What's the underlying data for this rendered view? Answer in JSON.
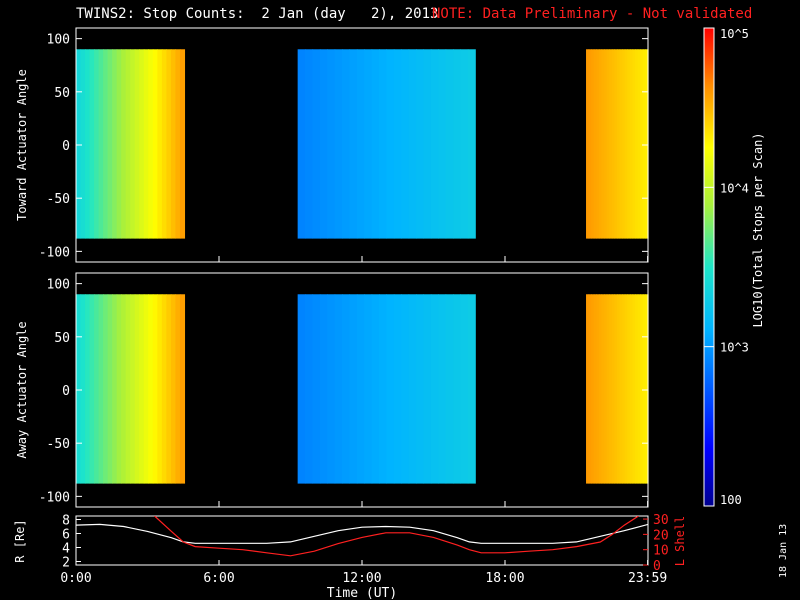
{
  "title": "TWINS2: Stop Counts:  2 Jan (day   2), 2013",
  "note": "NOTE: Data Preliminary - Not validated",
  "side_date": "18 Jan 13",
  "colors": {
    "background": "#000000",
    "axis": "#ffffff",
    "note": "#ff2020",
    "r_line": "#ffffff",
    "lshell_line": "#ff2020"
  },
  "colorbar": {
    "label": "LOG10(Total Stops per Scan)",
    "tick_labels": [
      "100",
      "10^3",
      "10^4",
      "10^5"
    ],
    "log_min": 2,
    "log_max": 5
  },
  "xaxis": {
    "label": "Time (UT)",
    "ticks": [
      "0:00",
      "6:00",
      "12:00",
      "18:00",
      "23:59"
    ],
    "tick_hours": [
      0,
      6,
      12,
      18,
      23.983
    ]
  },
  "chart_data": [
    {
      "type": "heatmap",
      "panel": "toward",
      "ylabel": "Toward Actuator Angle",
      "yticks": [
        100,
        50,
        0,
        -50,
        -100
      ],
      "ylim": [
        -110,
        110
      ],
      "xlim_hours": [
        0,
        24
      ],
      "data_angle_range": [
        -88,
        90
      ],
      "segments": [
        {
          "start_h": 0.0,
          "end_h": 4.55,
          "log_start": 3.35,
          "log_end": 4.6
        },
        {
          "start_h": 9.3,
          "end_h": 16.75,
          "log_start": 2.9,
          "log_end": 3.3
        },
        {
          "start_h": 21.4,
          "end_h": 24.0,
          "log_start": 4.6,
          "log_end": 4.3
        }
      ]
    },
    {
      "type": "heatmap",
      "panel": "away",
      "ylabel": "Away Actuator Angle",
      "yticks": [
        100,
        50,
        0,
        -50,
        -100
      ],
      "ylim": [
        -110,
        110
      ],
      "xlim_hours": [
        0,
        24
      ],
      "data_angle_range": [
        -88,
        90
      ],
      "segments": [
        {
          "start_h": 0.0,
          "end_h": 4.55,
          "log_start": 3.4,
          "log_end": 4.6
        },
        {
          "start_h": 9.3,
          "end_h": 16.75,
          "log_start": 2.9,
          "log_end": 3.3
        },
        {
          "start_h": 21.4,
          "end_h": 24.0,
          "log_start": 4.6,
          "log_end": 4.3
        }
      ]
    },
    {
      "type": "line",
      "panel": "orbit",
      "ylabel": "R [Re]",
      "ylabel_right": "L Shell",
      "yticks_left": [
        2,
        4,
        6,
        8
      ],
      "ylim_left": [
        1.5,
        8.5
      ],
      "yticks_right": [
        0,
        10,
        20,
        30
      ],
      "ylim_right": [
        0,
        32
      ],
      "series": [
        {
          "name": "R [Re]",
          "x": [
            0,
            1,
            2,
            3,
            4,
            4.5,
            5,
            6,
            7,
            8,
            9,
            10,
            11,
            12,
            13,
            14,
            15,
            16,
            16.5,
            17,
            18,
            19,
            20,
            21,
            22,
            23,
            24
          ],
          "y": [
            7.2,
            7.3,
            7.0,
            6.3,
            5.4,
            4.8,
            4.6,
            4.6,
            4.6,
            4.6,
            4.8,
            5.6,
            6.4,
            6.9,
            7.0,
            6.9,
            6.4,
            5.4,
            4.8,
            4.6,
            4.6,
            4.6,
            4.6,
            4.8,
            5.6,
            6.4,
            7.3
          ]
        },
        {
          "name": "L Shell",
          "x": [
            3.3,
            4,
            4.5,
            5,
            6,
            7,
            8,
            9,
            10,
            11,
            12,
            13,
            14,
            15,
            16,
            16.5,
            17,
            18,
            19,
            20,
            21,
            22,
            22.5,
            23,
            23.6
          ],
          "y": [
            32,
            22,
            15,
            12,
            11,
            10,
            8,
            6,
            9,
            14,
            18,
            21,
            21,
            18,
            13,
            10,
            8,
            8,
            9,
            10,
            12,
            15,
            20,
            26,
            32
          ]
        }
      ]
    }
  ]
}
